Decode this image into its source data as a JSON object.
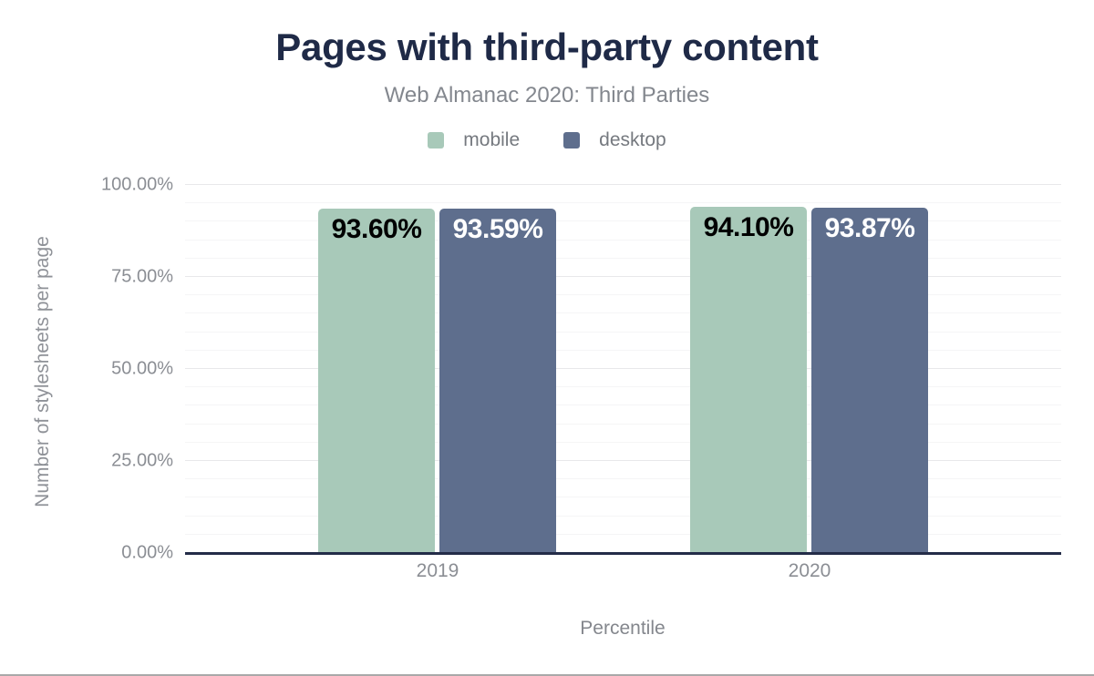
{
  "header": {
    "title": "Pages with third-party content",
    "subtitle": "Web Almanac 2020: Third Parties"
  },
  "legend": {
    "items": [
      {
        "label": "mobile",
        "color": "#a8c9b9"
      },
      {
        "label": "desktop",
        "color": "#5e6e8d"
      }
    ]
  },
  "chart_data": {
    "type": "bar",
    "title": "Pages with third-party content",
    "subtitle": "Web Almanac 2020: Third Parties",
    "categories": [
      "2019",
      "2020"
    ],
    "series": [
      {
        "name": "mobile",
        "color": "#a8c9b9",
        "values": [
          93.6,
          94.1
        ],
        "value_labels": [
          "93.60%",
          "94.10%"
        ],
        "value_label_color": "#000000"
      },
      {
        "name": "desktop",
        "color": "#5e6e8d",
        "values": [
          93.59,
          93.87
        ],
        "value_labels": [
          "93.59%",
          "93.87%"
        ],
        "value_label_color": "#ffffff"
      }
    ],
    "xlabel": "Percentile",
    "ylabel": "Number of stylesheets per page",
    "ylim": [
      0,
      100
    ],
    "yticks": [
      {
        "value": 0,
        "label": "0.00%"
      },
      {
        "value": 25,
        "label": "25.00%"
      },
      {
        "value": 50,
        "label": "50.00%"
      },
      {
        "value": 75,
        "label": "75.00%"
      },
      {
        "value": 100,
        "label": "100.00%"
      }
    ],
    "grid": {
      "horizontal": true,
      "minor_step": 5,
      "major_step": 25
    },
    "legend_position": "top",
    "axis_color": "#232c48"
  }
}
